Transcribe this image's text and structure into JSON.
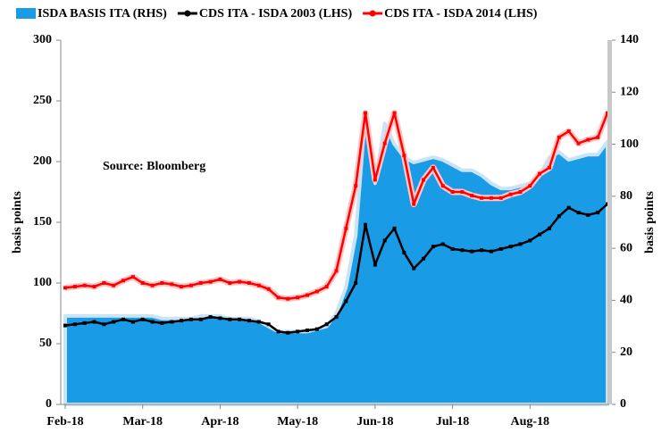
{
  "chart_data": {
    "type": "line",
    "ylabel": "basis points",
    "y2label": "basis points",
    "annotation": "Source: Bloomberg",
    "categories": [
      "Feb-18",
      null,
      null,
      null,
      null,
      null,
      null,
      null,
      "Mar-18",
      null,
      null,
      null,
      null,
      null,
      null,
      null,
      "Apr-18",
      null,
      null,
      null,
      null,
      null,
      null,
      null,
      "May-18",
      null,
      null,
      null,
      null,
      null,
      null,
      null,
      "Jun-18",
      null,
      null,
      null,
      null,
      null,
      null,
      null,
      "Jul-18",
      null,
      null,
      null,
      null,
      null,
      null,
      null,
      "Aug-18",
      null,
      null,
      null,
      null,
      null,
      null,
      null,
      null
    ],
    "ylim": [
      0,
      300
    ],
    "yticks": [
      0,
      50,
      100,
      150,
      200,
      250,
      300
    ],
    "y2lim": [
      0,
      140
    ],
    "y2ticks": [
      0,
      20,
      40,
      60,
      80,
      100,
      120,
      140
    ],
    "series": [
      {
        "name": "ISDA BASIS ITA (RHS)",
        "color": "#1a9be6",
        "kind": "area",
        "axis": "y2",
        "values": [
          34,
          34,
          34,
          34,
          34,
          34,
          34,
          34,
          34,
          34,
          33,
          33,
          33,
          33,
          34,
          34,
          34,
          33,
          33,
          33,
          32,
          30,
          28,
          28,
          28,
          28,
          29,
          30,
          35,
          45,
          65,
          112,
          85,
          108,
          100,
          95,
          93,
          94,
          95,
          94,
          92,
          90,
          90,
          88,
          85,
          83,
          83,
          84,
          85,
          88,
          95,
          97,
          94,
          95,
          96,
          96,
          101
        ]
      },
      {
        "name": "CDS ITA - ISDA 2003 (LHS)",
        "color": "#000000",
        "kind": "line",
        "values": [
          65,
          66,
          67,
          68,
          66,
          68,
          70,
          68,
          70,
          68,
          67,
          68,
          69,
          70,
          70,
          72,
          71,
          70,
          70,
          69,
          68,
          66,
          60,
          59,
          60,
          61,
          62,
          66,
          72,
          85,
          100,
          148,
          115,
          135,
          145,
          125,
          112,
          120,
          130,
          132,
          128,
          127,
          126,
          127,
          126,
          128,
          130,
          132,
          135,
          140,
          145,
          155,
          162,
          158,
          156,
          158,
          165
        ]
      },
      {
        "name": "CDS ITA - ISDA 2014 (LHS)",
        "color": "#ff0000",
        "kind": "line",
        "values": [
          96,
          97,
          98,
          97,
          100,
          98,
          102,
          105,
          100,
          98,
          100,
          99,
          97,
          98,
          100,
          101,
          103,
          100,
          101,
          100,
          98,
          95,
          88,
          87,
          88,
          90,
          93,
          97,
          110,
          145,
          180,
          240,
          185,
          215,
          240,
          205,
          165,
          185,
          195,
          180,
          175,
          175,
          172,
          170,
          170,
          170,
          173,
          175,
          180,
          190,
          195,
          220,
          225,
          215,
          218,
          220,
          240
        ]
      }
    ]
  }
}
